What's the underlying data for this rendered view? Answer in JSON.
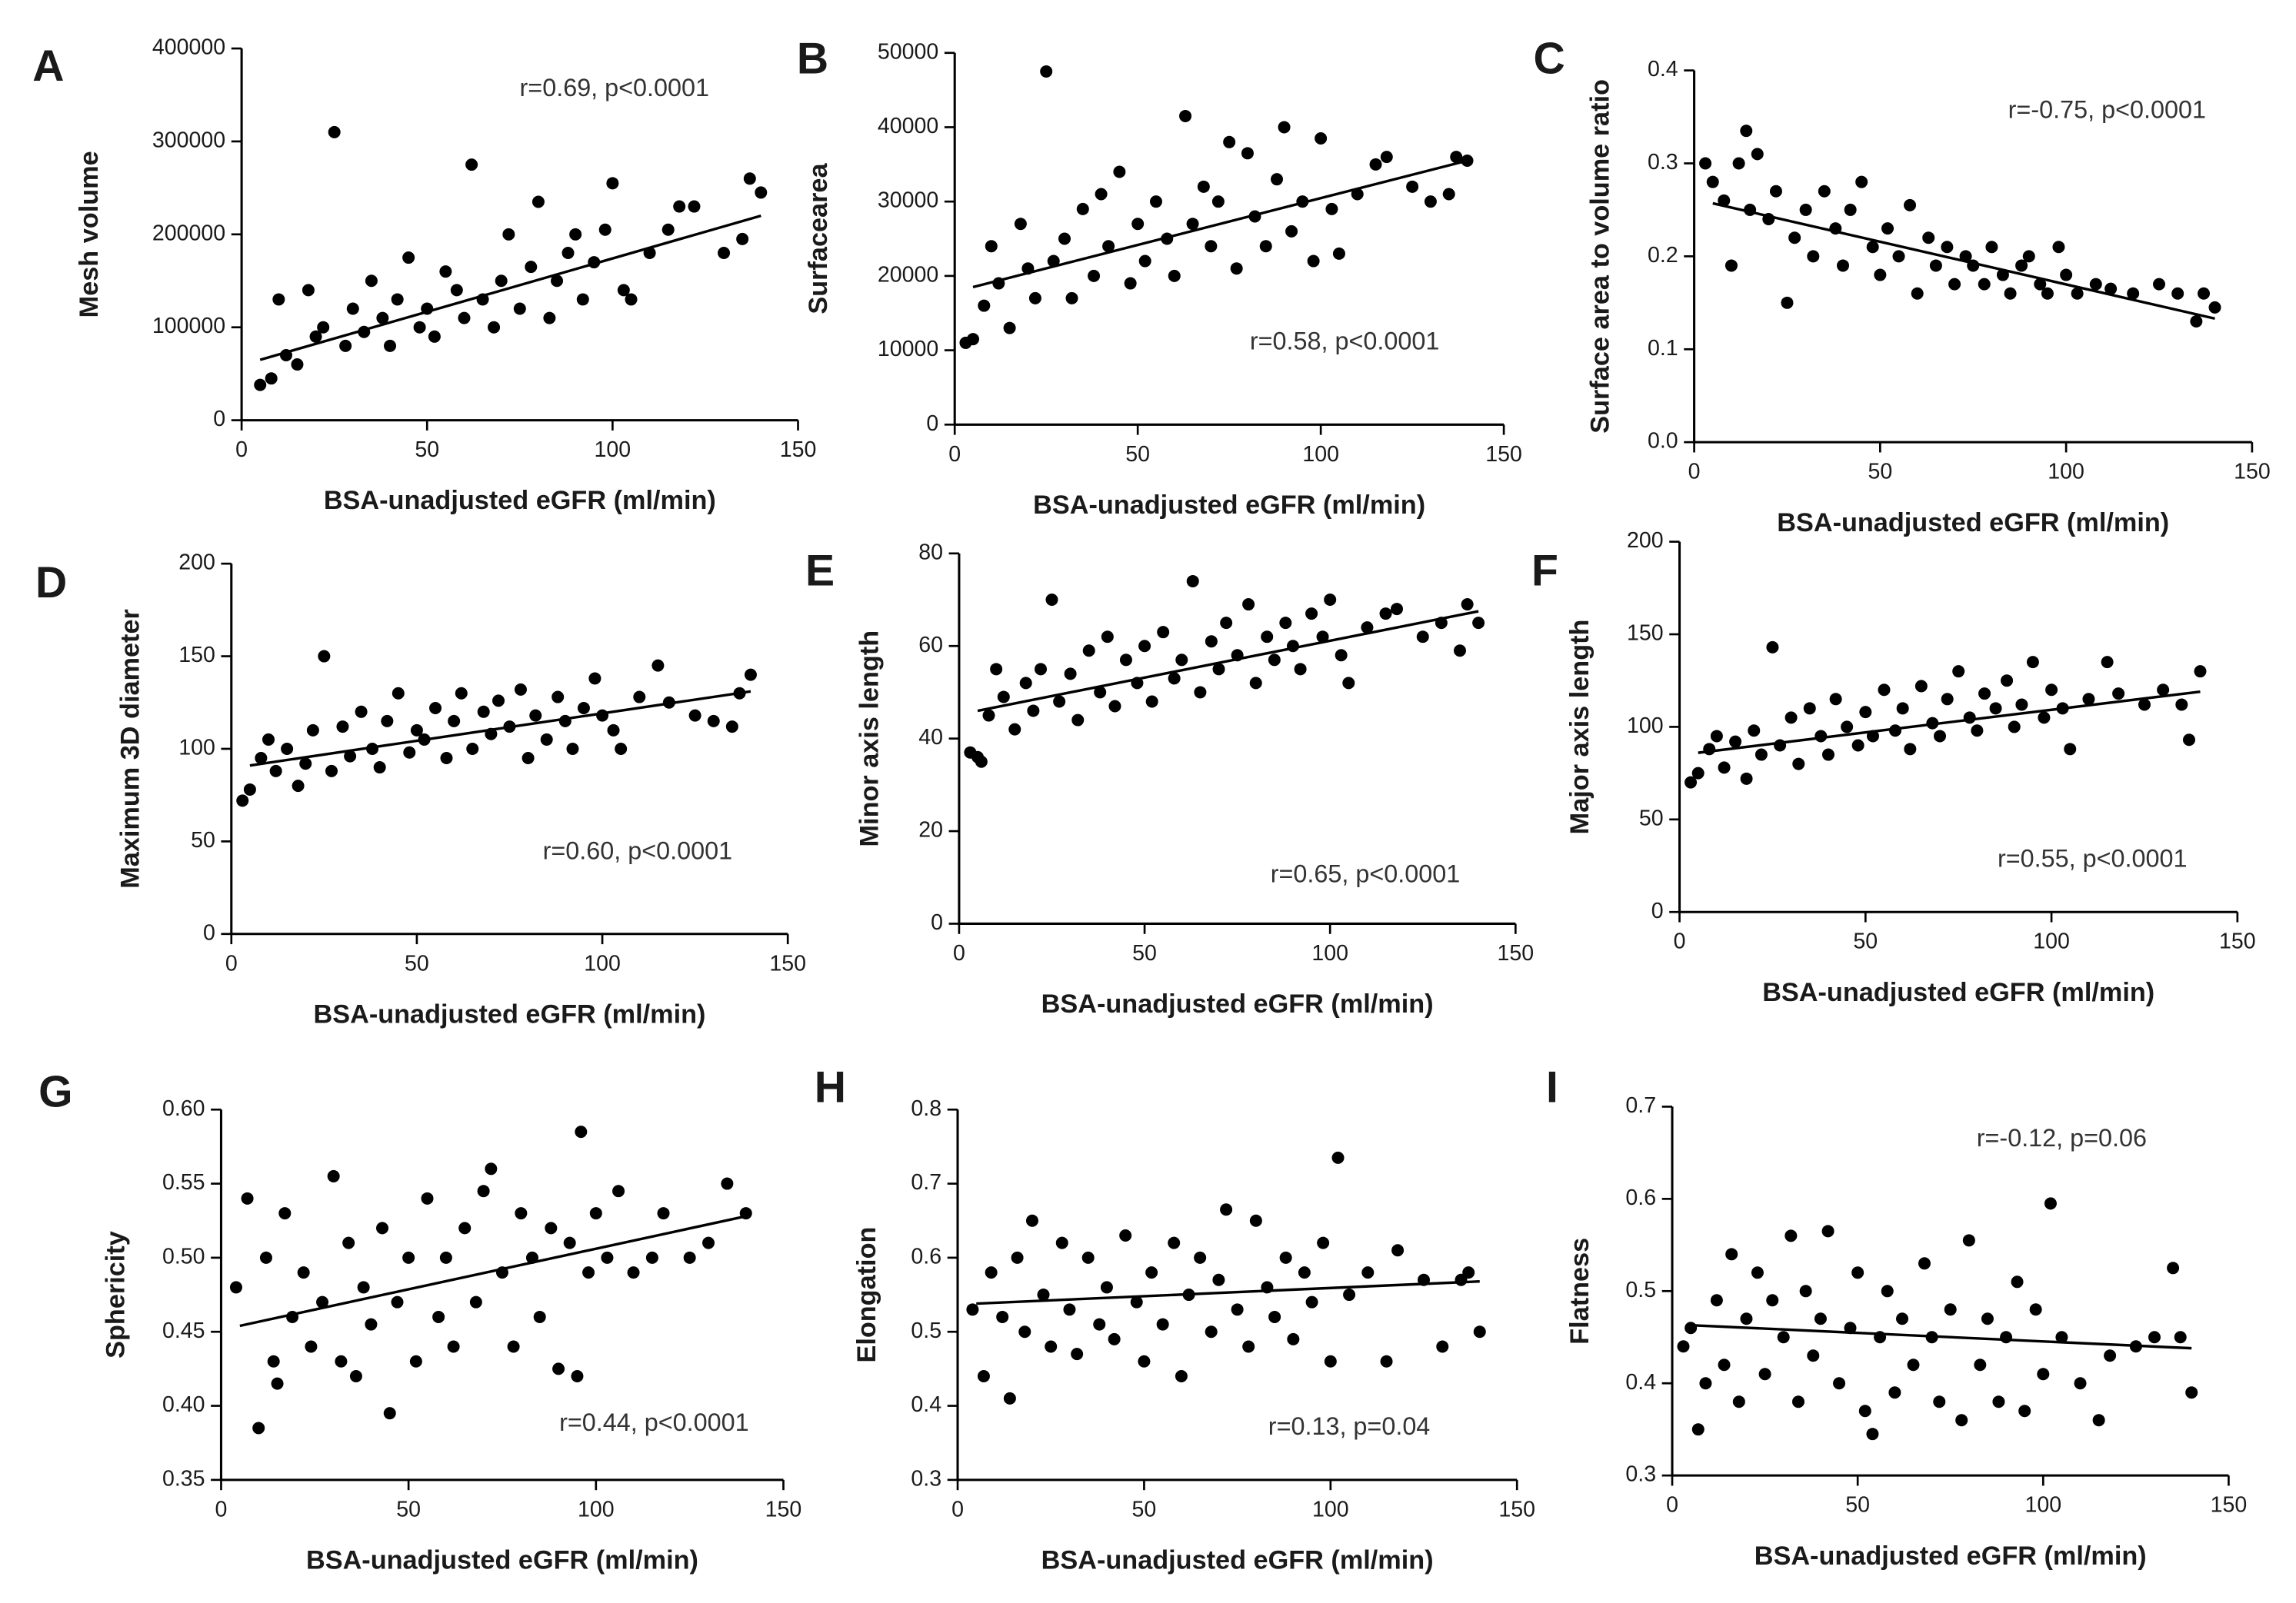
{
  "chart_data": [
    {
      "type": "scatter",
      "panel": "A",
      "ylabel": "Mesh volume",
      "xlabel": "BSA-unadjusted eGFR (ml/min)",
      "annotation": "r=0.69, p<0.0001",
      "color": "#000000",
      "x": [
        5,
        8,
        10,
        12,
        15,
        18,
        20,
        22,
        25,
        28,
        30,
        33,
        35,
        38,
        40,
        42,
        45,
        48,
        50,
        52,
        55,
        58,
        60,
        62,
        65,
        68,
        70,
        72,
        75,
        78,
        80,
        83,
        85,
        88,
        90,
        92,
        95,
        98,
        100,
        103,
        105,
        110,
        115,
        118,
        122,
        130,
        135,
        137,
        140
      ],
      "y": [
        38000,
        45000,
        130000,
        70000,
        60000,
        140000,
        90000,
        100000,
        310000,
        80000,
        120000,
        95000,
        150000,
        110000,
        80000,
        130000,
        175000,
        100000,
        120000,
        90000,
        160000,
        140000,
        110000,
        275000,
        130000,
        100000,
        150000,
        200000,
        120000,
        165000,
        235000,
        110000,
        150000,
        180000,
        200000,
        130000,
        170000,
        205000,
        255000,
        140000,
        130000,
        180000,
        205000,
        230000,
        230000,
        180000,
        195000,
        260000,
        245000
      ],
      "fit_x": [
        5,
        140
      ],
      "fit_y": [
        65000,
        220000
      ],
      "xlim": [
        0,
        150
      ],
      "xticks": [
        0,
        50,
        100,
        150
      ],
      "ylim": [
        0,
        400000
      ],
      "yticks": [
        0,
        100000,
        200000,
        300000,
        400000
      ]
    },
    {
      "type": "scatter",
      "panel": "B",
      "ylabel": "Surfacearea",
      "xlabel": "BSA-unadjusted eGFR (ml/min)",
      "annotation": "r=0.58, p<0.0001",
      "color": "#000000",
      "x": [
        3,
        5,
        8,
        10,
        12,
        15,
        18,
        20,
        22,
        25,
        27,
        30,
        32,
        35,
        38,
        40,
        42,
        45,
        48,
        50,
        52,
        55,
        58,
        60,
        63,
        65,
        68,
        70,
        72,
        75,
        77,
        80,
        82,
        85,
        88,
        90,
        92,
        95,
        98,
        100,
        103,
        105,
        110,
        115,
        118,
        125,
        130,
        135,
        137,
        140
      ],
      "y": [
        11000,
        11500,
        16000,
        24000,
        19000,
        13000,
        27000,
        21000,
        17000,
        47500,
        22000,
        25000,
        17000,
        29000,
        20000,
        31000,
        24000,
        34000,
        19000,
        27000,
        22000,
        30000,
        25000,
        20000,
        41500,
        27000,
        32000,
        24000,
        30000,
        38000,
        21000,
        36500,
        28000,
        24000,
        33000,
        40000,
        26000,
        30000,
        22000,
        38500,
        29000,
        23000,
        31000,
        35000,
        36000,
        32000,
        30000,
        31000,
        36000,
        35500
      ],
      "fit_x": [
        5,
        140
      ],
      "fit_y": [
        18500,
        35500
      ],
      "xlim": [
        0,
        150
      ],
      "xticks": [
        0,
        50,
        100,
        150
      ],
      "ylim": [
        0,
        50000
      ],
      "yticks": [
        0,
        10000,
        20000,
        30000,
        40000,
        50000
      ]
    },
    {
      "type": "scatter",
      "panel": "C",
      "ylabel": "Surface area to volume ratio",
      "xlabel": "BSA-unadjusted eGFR (ml/min)",
      "annotation": "r=-0.75, p<0.0001",
      "color": "#000000",
      "x": [
        3,
        5,
        8,
        10,
        12,
        14,
        15,
        17,
        20,
        22,
        25,
        27,
        30,
        32,
        35,
        38,
        40,
        42,
        45,
        48,
        50,
        52,
        55,
        58,
        60,
        63,
        65,
        68,
        70,
        73,
        75,
        78,
        80,
        83,
        85,
        88,
        90,
        93,
        95,
        98,
        100,
        103,
        108,
        112,
        118,
        125,
        130,
        135,
        137,
        140
      ],
      "y": [
        0.3,
        0.28,
        0.26,
        0.19,
        0.3,
        0.335,
        0.25,
        0.31,
        0.24,
        0.27,
        0.15,
        0.22,
        0.25,
        0.2,
        0.27,
        0.23,
        0.19,
        0.25,
        0.28,
        0.21,
        0.18,
        0.23,
        0.2,
        0.255,
        0.16,
        0.22,
        0.19,
        0.21,
        0.17,
        0.2,
        0.19,
        0.17,
        0.21,
        0.18,
        0.16,
        0.19,
        0.2,
        0.17,
        0.16,
        0.21,
        0.18,
        0.16,
        0.17,
        0.165,
        0.16,
        0.17,
        0.16,
        0.13,
        0.16,
        0.145
      ],
      "fit_x": [
        5,
        140
      ],
      "fit_y": [
        0.257,
        0.133
      ],
      "xlim": [
        0,
        150
      ],
      "xticks": [
        0,
        50,
        100,
        150
      ],
      "ylim": [
        0,
        0.4
      ],
      "yticks": [
        {
          "value": 0,
          "label": "0.0"
        },
        0.1,
        0.2,
        0.3,
        0.4
      ]
    },
    {
      "type": "scatter",
      "panel": "D",
      "ylabel": "Maximum 3D diameter",
      "xlabel": "BSA-unadjusted eGFR (ml/min)",
      "annotation": "r=0.60, p<0.0001",
      "color": "#000000",
      "x": [
        3,
        5,
        8,
        10,
        12,
        15,
        18,
        20,
        22,
        25,
        27,
        30,
        32,
        35,
        38,
        40,
        42,
        45,
        48,
        50,
        52,
        55,
        58,
        60,
        62,
        65,
        68,
        70,
        72,
        75,
        78,
        80,
        82,
        85,
        88,
        90,
        92,
        95,
        98,
        100,
        103,
        105,
        110,
        115,
        118,
        125,
        130,
        135,
        137,
        140
      ],
      "y": [
        72,
        78,
        95,
        105,
        88,
        100,
        80,
        92,
        110,
        150,
        88,
        112,
        96,
        120,
        100,
        90,
        115,
        130,
        98,
        110,
        105,
        122,
        95,
        115,
        130,
        100,
        120,
        108,
        126,
        112,
        132,
        95,
        118,
        105,
        128,
        115,
        100,
        122,
        138,
        118,
        110,
        100,
        128,
        145,
        125,
        118,
        115,
        112,
        130,
        140
      ],
      "fit_x": [
        5,
        140
      ],
      "fit_y": [
        91,
        131
      ],
      "xlim": [
        0,
        150
      ],
      "xticks": [
        0,
        50,
        100,
        150
      ],
      "ylim": [
        0,
        200
      ],
      "yticks": [
        0,
        50,
        100,
        150,
        200
      ]
    },
    {
      "type": "scatter",
      "panel": "E",
      "ylabel": "Minor axis length",
      "xlabel": "BSA-unadjusted eGFR (ml/min)",
      "annotation": "r=0.65, p<0.0001",
      "color": "#000000",
      "x": [
        3,
        5,
        6,
        8,
        10,
        12,
        15,
        18,
        20,
        22,
        25,
        27,
        30,
        32,
        35,
        38,
        40,
        42,
        45,
        48,
        50,
        52,
        55,
        58,
        60,
        63,
        65,
        68,
        70,
        72,
        75,
        78,
        80,
        83,
        85,
        88,
        90,
        92,
        95,
        98,
        100,
        103,
        105,
        110,
        115,
        118,
        125,
        130,
        135,
        137,
        140
      ],
      "y": [
        37,
        36,
        35,
        45,
        55,
        49,
        42,
        52,
        46,
        55,
        70,
        48,
        54,
        44,
        59,
        50,
        62,
        47,
        57,
        52,
        60,
        48,
        63,
        53,
        57,
        74,
        50,
        61,
        55,
        65,
        58,
        69,
        52,
        62,
        57,
        65,
        60,
        55,
        67,
        62,
        70,
        58,
        52,
        64,
        67,
        68,
        62,
        65,
        59,
        69,
        65
      ],
      "fit_x": [
        5,
        140
      ],
      "fit_y": [
        46,
        67.5
      ],
      "xlim": [
        0,
        150
      ],
      "xticks": [
        0,
        50,
        100,
        150
      ],
      "ylim": [
        0,
        80
      ],
      "yticks": [
        0,
        20,
        40,
        60,
        80
      ]
    },
    {
      "type": "scatter",
      "panel": "F",
      "ylabel": "Major axis length",
      "xlabel": "BSA-unadjusted eGFR (ml/min)",
      "annotation": "r=0.55, p<0.0001",
      "color": "#000000",
      "x": [
        3,
        5,
        8,
        10,
        12,
        15,
        18,
        20,
        22,
        25,
        27,
        30,
        32,
        35,
        38,
        40,
        42,
        45,
        48,
        50,
        52,
        55,
        58,
        60,
        62,
        65,
        68,
        70,
        72,
        75,
        78,
        80,
        82,
        85,
        88,
        90,
        92,
        95,
        98,
        100,
        103,
        105,
        110,
        115,
        118,
        125,
        130,
        135,
        137,
        140
      ],
      "y": [
        70,
        75,
        88,
        95,
        78,
        92,
        72,
        98,
        85,
        143,
        90,
        105,
        80,
        110,
        95,
        85,
        115,
        100,
        90,
        108,
        95,
        120,
        98,
        110,
        88,
        122,
        102,
        95,
        115,
        130,
        105,
        98,
        118,
        110,
        125,
        100,
        112,
        135,
        105,
        120,
        110,
        88,
        115,
        135,
        118,
        112,
        120,
        112,
        93,
        130
      ],
      "fit_x": [
        5,
        140
      ],
      "fit_y": [
        86,
        119
      ],
      "xlim": [
        0,
        150
      ],
      "xticks": [
        0,
        50,
        100,
        150
      ],
      "ylim": [
        0,
        200
      ],
      "yticks": [
        0,
        50,
        100,
        150,
        200
      ]
    },
    {
      "type": "scatter",
      "panel": "G",
      "ylabel": "Sphericity",
      "xlabel": "BSA-unadjusted eGFR (ml/min)",
      "annotation": "r=0.44, p<0.0001",
      "color": "#000000",
      "x": [
        4,
        7,
        10,
        12,
        14,
        15,
        17,
        19,
        22,
        24,
        27,
        30,
        32,
        34,
        36,
        38,
        40,
        43,
        45,
        47,
        50,
        52,
        55,
        58,
        60,
        62,
        65,
        68,
        70,
        72,
        75,
        78,
        80,
        83,
        85,
        88,
        90,
        93,
        95,
        96,
        98,
        100,
        103,
        106,
        110,
        115,
        118,
        125,
        130,
        135,
        140
      ],
      "y": [
        0.48,
        0.54,
        0.385,
        0.5,
        0.43,
        0.415,
        0.53,
        0.46,
        0.49,
        0.44,
        0.47,
        0.555,
        0.43,
        0.51,
        0.42,
        0.48,
        0.455,
        0.52,
        0.395,
        0.47,
        0.5,
        0.43,
        0.54,
        0.46,
        0.5,
        0.44,
        0.52,
        0.47,
        0.545,
        0.56,
        0.49,
        0.44,
        0.53,
        0.5,
        0.46,
        0.52,
        0.425,
        0.51,
        0.42,
        0.585,
        0.49,
        0.53,
        0.5,
        0.545,
        0.49,
        0.5,
        0.53,
        0.5,
        0.51,
        0.55,
        0.53
      ],
      "fit_x": [
        5,
        140
      ],
      "fit_y": [
        0.454,
        0.528
      ],
      "xlim": [
        0,
        150
      ],
      "xticks": [
        0,
        50,
        100,
        150
      ],
      "ylim": [
        0.35,
        0.6
      ],
      "yticks": [
        0.35,
        {
          "value": 0.4,
          "label": "0.40"
        },
        0.45,
        {
          "value": 0.5,
          "label": "0.50"
        },
        0.55,
        {
          "value": 0.6,
          "label": "0.60"
        }
      ]
    },
    {
      "type": "scatter",
      "panel": "H",
      "ylabel": "Elongation",
      "xlabel": "BSA-unadjusted eGFR (ml/min)",
      "annotation": "r=0.13, p=0.04",
      "color": "#000000",
      "x": [
        4,
        7,
        9,
        12,
        14,
        16,
        18,
        20,
        23,
        25,
        28,
        30,
        32,
        35,
        38,
        40,
        42,
        45,
        48,
        50,
        52,
        55,
        58,
        60,
        62,
        65,
        68,
        70,
        72,
        75,
        78,
        80,
        83,
        85,
        88,
        90,
        93,
        95,
        98,
        100,
        102,
        105,
        110,
        115,
        118,
        125,
        130,
        135,
        137,
        140
      ],
      "y": [
        0.53,
        0.44,
        0.58,
        0.52,
        0.41,
        0.6,
        0.5,
        0.65,
        0.55,
        0.48,
        0.62,
        0.53,
        0.47,
        0.6,
        0.51,
        0.56,
        0.49,
        0.63,
        0.54,
        0.46,
        0.58,
        0.51,
        0.62,
        0.44,
        0.55,
        0.6,
        0.5,
        0.57,
        0.665,
        0.53,
        0.48,
        0.65,
        0.56,
        0.52,
        0.6,
        0.49,
        0.58,
        0.54,
        0.62,
        0.46,
        0.735,
        0.55,
        0.58,
        0.46,
        0.61,
        0.57,
        0.48,
        0.57,
        0.58,
        0.5
      ],
      "fit_x": [
        5,
        140
      ],
      "fit_y": [
        0.538,
        0.568
      ],
      "xlim": [
        0,
        150
      ],
      "xticks": [
        0,
        50,
        100,
        150
      ],
      "ylim": [
        0.3,
        0.8
      ],
      "yticks": [
        0.3,
        0.4,
        0.5,
        0.6,
        0.7,
        0.8
      ]
    },
    {
      "type": "scatter",
      "panel": "I",
      "ylabel": "Flatness",
      "xlabel": "BSA-unadjusted eGFR (ml/min)",
      "annotation": "r=-0.12, p=0.06",
      "color": "#000000",
      "x": [
        3,
        5,
        7,
        9,
        12,
        14,
        16,
        18,
        20,
        23,
        25,
        27,
        30,
        32,
        34,
        36,
        38,
        40,
        42,
        45,
        48,
        50,
        52,
        54,
        56,
        58,
        60,
        62,
        65,
        68,
        70,
        72,
        75,
        78,
        80,
        83,
        85,
        88,
        90,
        93,
        95,
        98,
        100,
        102,
        105,
        110,
        115,
        118,
        125,
        130,
        135,
        137,
        140
      ],
      "y": [
        0.44,
        0.46,
        0.35,
        0.4,
        0.49,
        0.42,
        0.54,
        0.38,
        0.47,
        0.52,
        0.41,
        0.49,
        0.45,
        0.56,
        0.38,
        0.5,
        0.43,
        0.47,
        0.565,
        0.4,
        0.46,
        0.52,
        0.37,
        0.345,
        0.45,
        0.5,
        0.39,
        0.47,
        0.42,
        0.53,
        0.45,
        0.38,
        0.48,
        0.36,
        0.555,
        0.42,
        0.47,
        0.38,
        0.45,
        0.51,
        0.37,
        0.48,
        0.41,
        0.595,
        0.45,
        0.4,
        0.36,
        0.43,
        0.44,
        0.45,
        0.525,
        0.45,
        0.39
      ],
      "fit_x": [
        5,
        140
      ],
      "fit_y": [
        0.463,
        0.438
      ],
      "xlim": [
        0,
        150
      ],
      "xticks": [
        0,
        50,
        100,
        150
      ],
      "ylim": [
        0.3,
        0.7
      ],
      "yticks": [
        0.3,
        0.4,
        0.5,
        0.6,
        0.7
      ]
    }
  ]
}
